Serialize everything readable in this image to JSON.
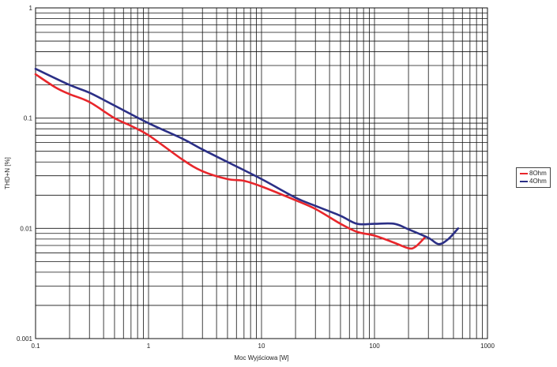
{
  "chart_data": {
    "type": "line",
    "title": "",
    "xlabel": "Moc Wyjściowa [W]",
    "ylabel": "THD+N [%]",
    "xscale": "log",
    "yscale": "log",
    "xlim": [
      0.1,
      1000
    ],
    "ylim": [
      0.001,
      1
    ],
    "xticks": [
      "0.1",
      "1",
      "10",
      "100",
      "1000"
    ],
    "yticks": [
      "0.001",
      "0.01",
      "0.1",
      "1"
    ],
    "grid": true,
    "legend_position": "right",
    "series": [
      {
        "name": "8Ohm",
        "color": "#e8262b",
        "x": [
          0.1,
          0.15,
          0.2,
          0.3,
          0.5,
          0.7,
          1,
          2,
          3,
          5,
          7,
          10,
          20,
          30,
          50,
          70,
          100,
          150,
          200,
          230,
          280
        ],
        "y": [
          0.25,
          0.19,
          0.165,
          0.14,
          0.1,
          0.085,
          0.07,
          0.042,
          0.033,
          0.028,
          0.027,
          0.024,
          0.018,
          0.015,
          0.011,
          0.0093,
          0.0086,
          0.0074,
          0.0066,
          0.0068,
          0.0083
        ]
      },
      {
        "name": "4Ohm",
        "color": "#2b2f86",
        "x": [
          0.1,
          0.2,
          0.3,
          0.5,
          1,
          2,
          3,
          5,
          10,
          20,
          30,
          50,
          70,
          100,
          150,
          200,
          300,
          370,
          450,
          550
        ],
        "y": [
          0.28,
          0.2,
          0.17,
          0.13,
          0.09,
          0.065,
          0.052,
          0.04,
          0.028,
          0.019,
          0.016,
          0.013,
          0.011,
          0.011,
          0.011,
          0.0098,
          0.0082,
          0.0072,
          0.008,
          0.01
        ]
      }
    ]
  }
}
